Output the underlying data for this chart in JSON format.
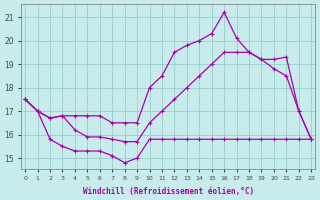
{
  "xlabel": "Windchill (Refroidissement éolien,°C)",
  "xlim": [
    -0.3,
    23.3
  ],
  "ylim": [
    14.55,
    21.55
  ],
  "yticks": [
    15,
    16,
    17,
    18,
    19,
    20,
    21
  ],
  "xticks": [
    0,
    1,
    2,
    3,
    4,
    5,
    6,
    7,
    8,
    9,
    10,
    11,
    12,
    13,
    14,
    15,
    16,
    17,
    18,
    19,
    20,
    21,
    22,
    23
  ],
  "bg_color": "#c8ecec",
  "grid_color": "#99cccc",
  "line_color": "#aa00aa",
  "line1_x": [
    0,
    1,
    2,
    3,
    4,
    5,
    6,
    7,
    8,
    9,
    10,
    11,
    12,
    13,
    14,
    15,
    16,
    17,
    18,
    19,
    20,
    21,
    22,
    23
  ],
  "line1_y": [
    17.5,
    17.0,
    16.7,
    16.8,
    16.8,
    16.8,
    16.8,
    16.5,
    16.5,
    16.5,
    18.0,
    18.5,
    19.5,
    19.8,
    20.0,
    20.3,
    21.2,
    20.1,
    19.5,
    19.2,
    18.8,
    18.5,
    17.0,
    15.8
  ],
  "line2_x": [
    0,
    1,
    2,
    3,
    4,
    5,
    6,
    7,
    8,
    9,
    10,
    11,
    12,
    13,
    14,
    15,
    16,
    17,
    18,
    19,
    20,
    21,
    22,
    23
  ],
  "line2_y": [
    17.5,
    17.0,
    16.7,
    16.8,
    16.2,
    15.9,
    15.9,
    15.8,
    15.7,
    15.7,
    16.5,
    17.0,
    17.5,
    18.0,
    18.5,
    19.0,
    19.5,
    19.5,
    19.5,
    19.2,
    19.2,
    19.3,
    17.0,
    15.8
  ],
  "line3_x": [
    0,
    1,
    2,
    3,
    4,
    5,
    6,
    7,
    8,
    9,
    10,
    11,
    12,
    13,
    14,
    15,
    16,
    17,
    18,
    19,
    20,
    21,
    22,
    23
  ],
  "line3_y": [
    17.5,
    17.0,
    15.8,
    15.5,
    15.3,
    15.3,
    15.3,
    15.1,
    14.8,
    15.0,
    15.8,
    15.8,
    15.8,
    15.8,
    15.8,
    15.8,
    15.8,
    15.8,
    15.8,
    15.8,
    15.8,
    15.8,
    15.8,
    15.8
  ],
  "linewidth": 0.9,
  "marker_size": 3.0,
  "marker_ew": 0.8
}
